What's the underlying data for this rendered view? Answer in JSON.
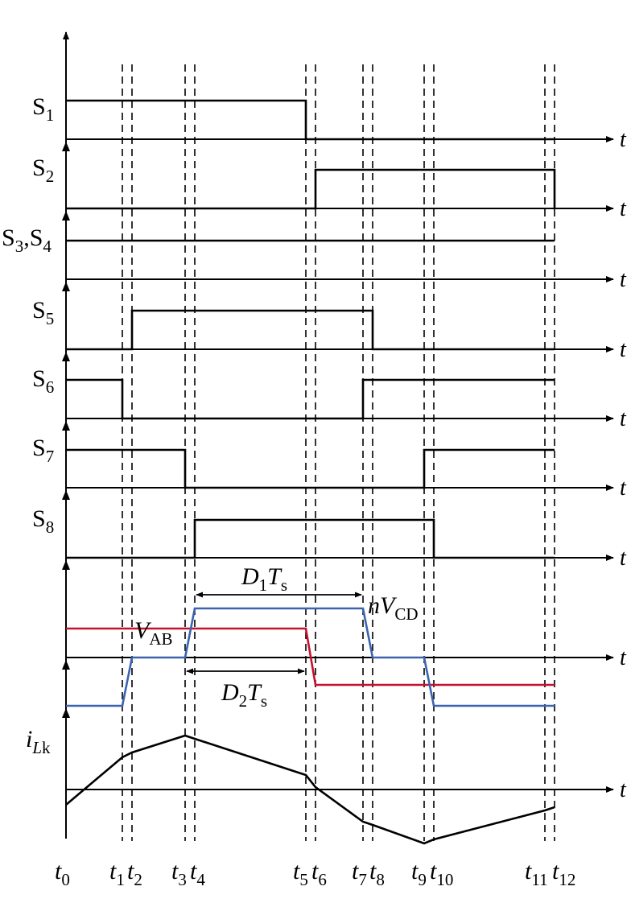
{
  "time_axis_label": "t",
  "colors": {
    "v_ab": "#c8102e",
    "nv_cd": "#3b63b0",
    "signal": "#000000"
  },
  "switch_labels": [
    {
      "base": "S",
      "sub": "1"
    },
    {
      "base": "S",
      "sub": "2"
    },
    {
      "base": "S",
      "sub": "3",
      "extra_base": ",S",
      "extra_sub": "4"
    },
    {
      "base": "S",
      "sub": "5"
    },
    {
      "base": "S",
      "sub": "6"
    },
    {
      "base": "S",
      "sub": "7"
    },
    {
      "base": "S",
      "sub": "8"
    }
  ],
  "voltage_labels": {
    "v_ab": {
      "base": "V",
      "sub": "AB"
    },
    "nv_cd": {
      "prefix": "n",
      "base": "V",
      "sub": "CD"
    }
  },
  "current_label": {
    "base": "i",
    "sub_italic": "L",
    "sub": "k"
  },
  "durations": {
    "d1": {
      "base": "D",
      "sub": "1",
      "mid": "T",
      "sub2": "s"
    },
    "d2": {
      "base": "D",
      "sub": "2",
      "mid": "T",
      "sub2": "s"
    }
  },
  "time_marks": [
    {
      "base": "t",
      "sub": "0"
    },
    {
      "base": "t",
      "sub": "1"
    },
    {
      "base": "t",
      "sub": "2"
    },
    {
      "base": "t",
      "sub": "3"
    },
    {
      "base": "t",
      "sub": "4"
    },
    {
      "base": "t",
      "sub": "5"
    },
    {
      "base": "t",
      "sub": "6"
    },
    {
      "base": "t",
      "sub": "7"
    },
    {
      "base": "t",
      "sub": "8"
    },
    {
      "base": "t",
      "sub": "9"
    },
    {
      "base": "t",
      "sub": "10"
    },
    {
      "base": "t",
      "sub": "11"
    },
    {
      "base": "t",
      "sub": "12"
    }
  ]
}
